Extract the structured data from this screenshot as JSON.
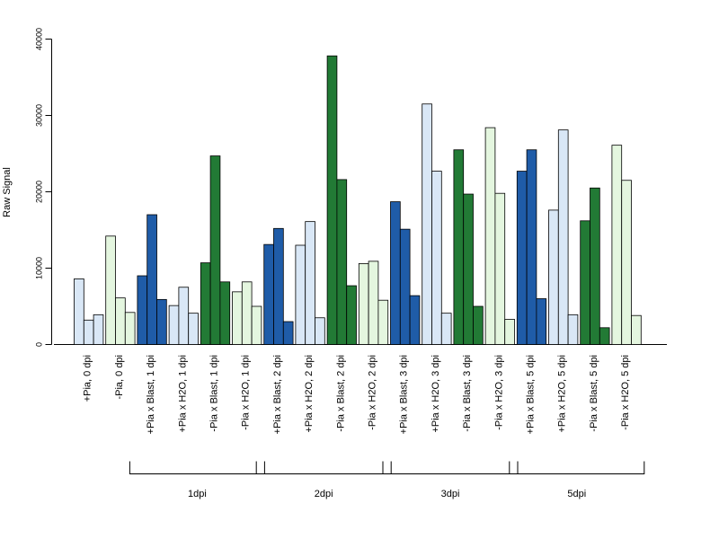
{
  "chart_data": {
    "type": "bar",
    "ylabel": "Raw Signal",
    "xlabel": "",
    "ylim": [
      0,
      40000
    ],
    "yticks": [
      "0",
      "10000",
      "20000",
      "30000",
      "40000"
    ],
    "grid": false,
    "categories": [
      "+Pia, 0 dpi",
      "-Pia, 0 dpi",
      "+Pia x Blast, 1 dpi",
      "+Pia x H2O, 1 dpi",
      "-Pia x Blast, 1 dpi",
      "-Pia x H2O, 1 dpi",
      "+Pia x Blast, 2 dpi",
      "+Pia x H2O, 2 dpi",
      "-Pia x Blast, 2 dpi",
      "-Pia x H2O, 2 dpi",
      "+Pia x Blast, 3 dpi",
      "+Pia x H2O, 3 dpi",
      "-Pia x Blast, 3 dpi",
      "-Pia x H2O, 3 dpi",
      "+Pia x Blast, 5 dpi",
      "+Pia x H2O, 5 dpi",
      "-Pia x Blast, 5 dpi",
      "-Pia x H2O, 5 dpi"
    ],
    "values": [
      [
        8600,
        3200,
        3900
      ],
      [
        14200,
        6100,
        4200
      ],
      [
        9000,
        17000,
        5900
      ],
      [
        5100,
        7500,
        4100
      ],
      [
        10700,
        24700,
        8200
      ],
      [
        6900,
        8200,
        5000
      ],
      [
        13100,
        15200,
        3000
      ],
      [
        13000,
        16100,
        3500
      ],
      [
        37800,
        21600,
        7700
      ],
      [
        10600,
        10900,
        5800
      ],
      [
        18700,
        15100,
        6400
      ],
      [
        31500,
        22700,
        4100
      ],
      [
        25500,
        19700,
        5000
      ],
      [
        28400,
        19800,
        3300
      ],
      [
        22700,
        25500,
        6000
      ],
      [
        17600,
        28100,
        3900
      ],
      [
        16200,
        20500,
        2200
      ],
      [
        26100,
        21500,
        3800
      ]
    ],
    "colors": {
      "plus_blast": "#1f5ca8",
      "plus_h2o": "#d9e7f6",
      "minus_blast": "#227a35",
      "minus_h2o": "#e4f6df"
    },
    "color_keys": [
      "plus_h2o",
      "minus_h2o",
      "plus_blast",
      "plus_h2o",
      "minus_blast",
      "minus_h2o",
      "plus_blast",
      "plus_h2o",
      "minus_blast",
      "minus_h2o",
      "plus_blast",
      "plus_h2o",
      "minus_blast",
      "minus_h2o",
      "plus_blast",
      "plus_h2o",
      "minus_blast",
      "minus_h2o"
    ],
    "groups": [
      {
        "label": "1dpi",
        "first": 2,
        "last": 5
      },
      {
        "label": "2dpi",
        "first": 6,
        "last": 9
      },
      {
        "label": "3dpi",
        "first": 10,
        "last": 13
      },
      {
        "label": "5dpi",
        "first": 14,
        "last": 17
      }
    ]
  }
}
